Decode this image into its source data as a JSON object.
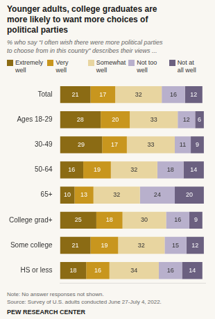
{
  "chart_data": {
    "type": "bar",
    "orientation": "horizontal",
    "stacked": true,
    "title": "Younger adults, college graduates are\nmore likely to want more choices of\npolitical parties",
    "subtitle": "% who say “I often wish there were more political parties\nto choose from in this country” describes their views ...",
    "annotations": [
      "Note: No answer responses not shown.",
      "Source: Survey of U.S. adults conducted June 27-July 4, 2022.",
      "PEW RESEARCH CENTER"
    ],
    "categories": [
      "Total",
      "Ages 18-29",
      "30-49",
      "50-64",
      "65+",
      "College grad+",
      "Some college",
      "HS or less"
    ],
    "series": [
      {
        "name": "Extremely\nwell",
        "color": "#8B6B14",
        "values": [
          21,
          28,
          29,
          16,
          10,
          25,
          21,
          18
        ]
      },
      {
        "name": "Very\nwell",
        "color": "#C8961E",
        "values": [
          17,
          20,
          17,
          19,
          13,
          18,
          19,
          16
        ]
      },
      {
        "name": "Somewhat\nwell",
        "color": "#E8D5A0",
        "values": [
          32,
          33,
          33,
          32,
          32,
          30,
          32,
          34
        ]
      },
      {
        "name": "Not too\nwell",
        "color": "#B8B0CC",
        "values": [
          16,
          12,
          11,
          18,
          24,
          16,
          15,
          16
        ]
      },
      {
        "name": "Not at\nall well",
        "color": "#6B6080",
        "values": [
          12,
          6,
          9,
          14,
          20,
          9,
          12,
          14
        ]
      }
    ],
    "xlim": [
      0,
      100
    ],
    "grid": false,
    "legend": "top",
    "data_labels": true,
    "tick_labels": "y"
  }
}
